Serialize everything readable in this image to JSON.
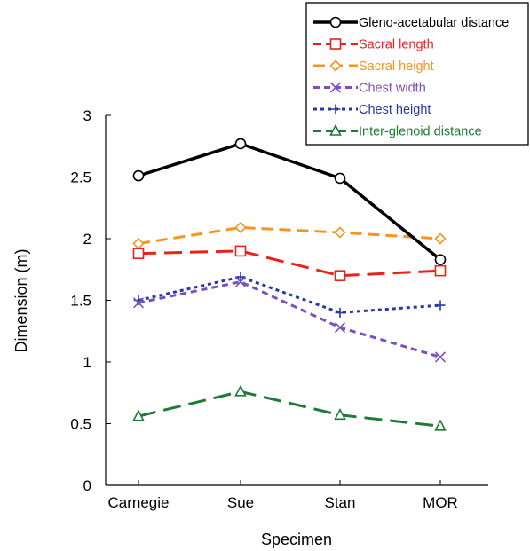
{
  "chart_data": {
    "type": "line",
    "categories": [
      "Carnegie",
      "Sue",
      "Stan",
      "MOR"
    ],
    "xlabel": "Specimen",
    "ylabel": "Dimension (m)",
    "ylim": [
      0,
      3
    ],
    "yticks": [
      "0",
      "0.5",
      "1",
      "1.5",
      "2",
      "2.5",
      "3"
    ],
    "grid": false,
    "legend_position": "top-right",
    "series": [
      {
        "name": "Gleno-acetabular distance",
        "values": [
          2.51,
          2.77,
          2.49,
          1.83
        ],
        "color": "#000000",
        "dash": "solid",
        "marker": "circle"
      },
      {
        "name": "Sacral length",
        "values": [
          1.88,
          1.9,
          1.7,
          1.74
        ],
        "color": "#e8231c",
        "dash": "longdash",
        "marker": "square"
      },
      {
        "name": "Sacral height",
        "values": [
          1.96,
          2.09,
          2.05,
          2.0
        ],
        "color": "#f7941d",
        "dash": "dash",
        "marker": "diamond"
      },
      {
        "name": "Chest width",
        "values": [
          1.48,
          1.65,
          1.28,
          1.04
        ],
        "color": "#7b4fbf",
        "dash": "shortdash",
        "marker": "x"
      },
      {
        "name": "Chest height",
        "values": [
          1.5,
          1.69,
          1.4,
          1.46
        ],
        "color": "#2638a8",
        "dash": "dot",
        "marker": "plus"
      },
      {
        "name": "Inter-glenoid distance",
        "values": [
          0.56,
          0.76,
          0.57,
          0.48
        ],
        "color": "#1e7a35",
        "dash": "longdash",
        "marker": "triangle"
      }
    ]
  }
}
